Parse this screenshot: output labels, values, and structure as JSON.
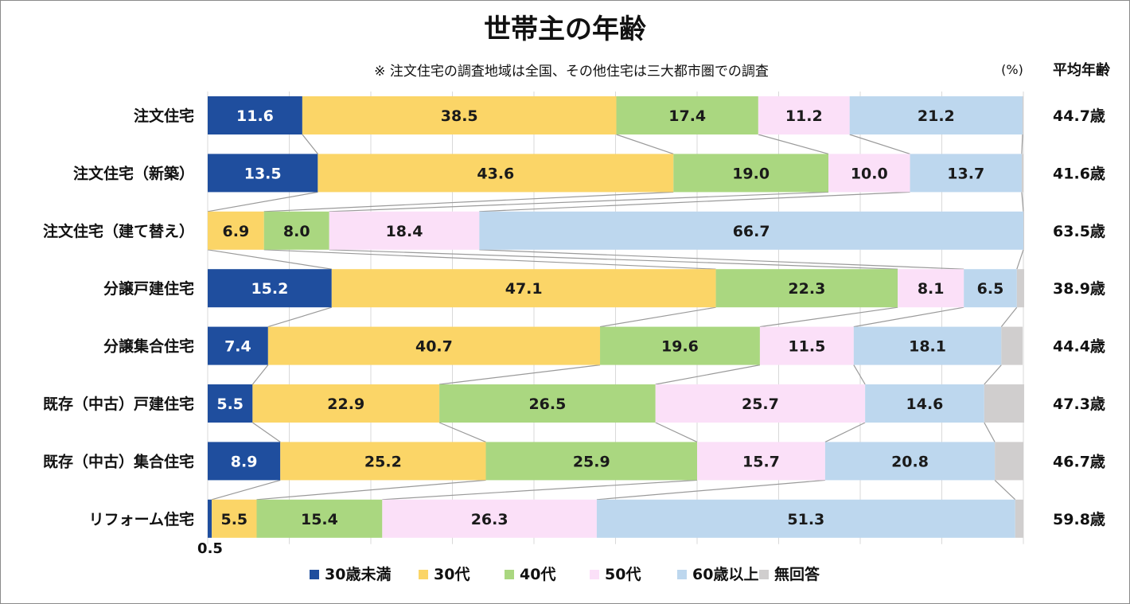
{
  "chart_data": {
    "type": "bar",
    "title": "世帯主の年齢",
    "subtitle": "※ 注文住宅の調査地域は全国、その他住宅は三大都市圏での調査",
    "unit_label": "(%)",
    "avg_header": "平均年齢",
    "xlim": [
      0,
      100
    ],
    "legend_position": "bottom",
    "categories": [
      "注文住宅",
      "注文住宅（新築）",
      "注文住宅（建て替え）",
      "分譲戸建住宅",
      "分譲集合住宅",
      "既存（中古）戸建住宅",
      "既存（中古）集合住宅",
      "リフォーム住宅"
    ],
    "avg_ages": [
      "44.7歳",
      "41.6歳",
      "63.5歳",
      "38.9歳",
      "44.4歳",
      "47.3歳",
      "46.7歳",
      "59.8歳"
    ],
    "series": [
      {
        "name": "30歳未満",
        "color": "#1f4e9e",
        "label_color": "#ffffff",
        "values": [
          11.6,
          13.5,
          0,
          15.2,
          7.4,
          5.5,
          8.9,
          0.5
        ]
      },
      {
        "name": "30代",
        "color": "#fbd567",
        "label_color": "#1a1a1a",
        "values": [
          38.5,
          43.6,
          6.9,
          47.1,
          40.7,
          22.9,
          25.2,
          5.5
        ]
      },
      {
        "name": "40代",
        "color": "#aad780",
        "label_color": "#1a1a1a",
        "values": [
          17.4,
          19.0,
          8.0,
          22.3,
          19.6,
          26.5,
          25.9,
          15.4
        ]
      },
      {
        "name": "50代",
        "color": "#fbe0f8",
        "label_color": "#1a1a1a",
        "values": [
          11.2,
          10.0,
          18.4,
          8.1,
          11.5,
          25.7,
          15.7,
          26.3
        ]
      },
      {
        "name": "60歳以上",
        "color": "#bdd7ee",
        "label_color": "#1a1a1a",
        "values": [
          21.2,
          13.7,
          66.7,
          6.5,
          18.1,
          14.6,
          20.8,
          51.3
        ]
      },
      {
        "name": "無回答",
        "color": "#d0cece",
        "label_color": "#1a1a1a",
        "values": [
          0.1,
          0.2,
          0.1,
          0.9,
          2.6,
          4.9,
          3.5,
          1.0
        ]
      }
    ],
    "data_labels": [
      [
        "11.6",
        "38.5",
        "17.4",
        "11.2",
        "21.2",
        ""
      ],
      [
        "13.5",
        "43.6",
        "19.0",
        "10.0",
        "13.7",
        ""
      ],
      [
        "",
        "6.9",
        "8.0",
        "18.4",
        "66.7",
        ""
      ],
      [
        "15.2",
        "47.1",
        "22.3",
        "8.1",
        "6.5",
        ""
      ],
      [
        "7.4",
        "40.7",
        "19.6",
        "11.5",
        "18.1",
        ""
      ],
      [
        "5.5",
        "22.9",
        "26.5",
        "25.7",
        "14.6",
        ""
      ],
      [
        "8.9",
        "25.2",
        "25.9",
        "15.7",
        "20.8",
        ""
      ],
      [
        "",
        "5.5",
        "15.4",
        "26.3",
        "51.3",
        ""
      ]
    ],
    "outside_labels": [
      {
        "row": 7,
        "series": 0,
        "text": "0.5"
      }
    ]
  }
}
